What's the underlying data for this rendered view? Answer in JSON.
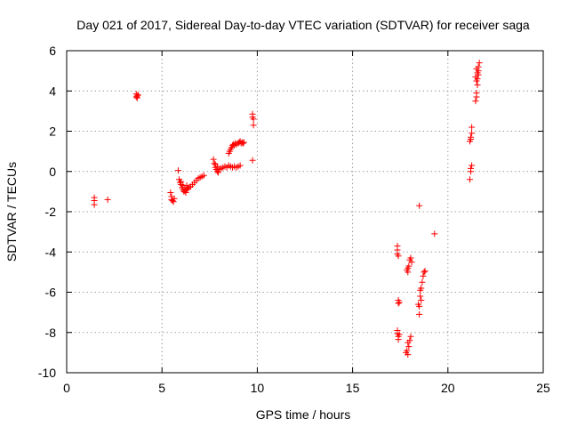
{
  "chart_data": {
    "type": "scatter",
    "title": "Day 021 of 2017, Sidereal Day-to-day VTEC variation (SDTVAR) for receiver saga",
    "xlabel": "GPS time / hours",
    "ylabel": "SDTVAR / TECUs",
    "xlim": [
      0,
      25
    ],
    "ylim": [
      -10,
      6
    ],
    "xticks": [
      0,
      5,
      10,
      15,
      20,
      25
    ],
    "yticks": [
      -10,
      -8,
      -6,
      -4,
      -2,
      0,
      2,
      4,
      6
    ],
    "grid": true,
    "marker": "+",
    "color": "#ff0000",
    "series": [
      {
        "name": "SDTVAR",
        "points": [
          [
            1.45,
            -1.3
          ],
          [
            1.45,
            -1.45
          ],
          [
            1.45,
            -1.65
          ],
          [
            2.15,
            -1.4
          ],
          [
            3.65,
            3.7
          ],
          [
            3.65,
            3.85
          ],
          [
            3.7,
            3.75
          ],
          [
            3.75,
            3.8
          ],
          [
            3.7,
            3.65
          ],
          [
            5.45,
            -1.05
          ],
          [
            5.5,
            -1.25
          ],
          [
            5.55,
            -1.45
          ],
          [
            5.6,
            -1.5
          ],
          [
            5.65,
            -1.35
          ],
          [
            5.5,
            -1.4
          ],
          [
            5.85,
            0.05
          ],
          [
            5.9,
            -0.4
          ],
          [
            5.95,
            -0.55
          ],
          [
            6.0,
            -0.65
          ],
          [
            6.05,
            -0.8
          ],
          [
            6.1,
            -0.9
          ],
          [
            6.15,
            -1.0
          ],
          [
            6.2,
            -0.95
          ],
          [
            6.25,
            -1.05
          ],
          [
            6.3,
            -0.9
          ],
          [
            6.35,
            -0.85
          ],
          [
            6.4,
            -0.8
          ],
          [
            6.5,
            -0.75
          ],
          [
            6.6,
            -0.65
          ],
          [
            6.7,
            -0.55
          ],
          [
            6.8,
            -0.45
          ],
          [
            6.9,
            -0.35
          ],
          [
            7.0,
            -0.3
          ],
          [
            7.1,
            -0.25
          ],
          [
            7.2,
            -0.2
          ],
          [
            6.0,
            -0.5
          ],
          [
            6.1,
            -0.7
          ],
          [
            6.2,
            -0.8
          ],
          [
            6.3,
            -0.7
          ],
          [
            7.7,
            0.6
          ],
          [
            7.75,
            0.4
          ],
          [
            7.8,
            0.2
          ],
          [
            7.85,
            0.1
          ],
          [
            7.9,
            0.0
          ],
          [
            7.95,
            -0.05
          ],
          [
            8.0,
            0.1
          ],
          [
            8.1,
            0.15
          ],
          [
            8.2,
            0.2
          ],
          [
            8.3,
            0.25
          ],
          [
            8.4,
            0.2
          ],
          [
            8.5,
            0.3
          ],
          [
            8.6,
            0.25
          ],
          [
            8.7,
            0.2
          ],
          [
            8.8,
            0.25
          ],
          [
            8.9,
            0.2
          ],
          [
            9.0,
            0.25
          ],
          [
            9.1,
            0.3
          ],
          [
            7.8,
            0.35
          ],
          [
            7.9,
            0.25
          ],
          [
            8.5,
            0.9
          ],
          [
            8.55,
            1.0
          ],
          [
            8.6,
            1.1
          ],
          [
            8.65,
            1.2
          ],
          [
            8.7,
            1.3
          ],
          [
            8.75,
            1.35
          ],
          [
            8.8,
            1.3
          ],
          [
            8.85,
            1.4
          ],
          [
            8.9,
            1.35
          ],
          [
            9.0,
            1.4
          ],
          [
            9.05,
            1.45
          ],
          [
            9.1,
            1.5
          ],
          [
            9.15,
            1.4
          ],
          [
            9.2,
            1.45
          ],
          [
            9.25,
            1.4
          ],
          [
            9.3,
            1.45
          ],
          [
            9.75,
            2.7
          ],
          [
            9.75,
            2.85
          ],
          [
            9.8,
            2.6
          ],
          [
            9.8,
            2.3
          ],
          [
            9.75,
            0.55
          ],
          [
            17.35,
            -3.7
          ],
          [
            17.35,
            -3.9
          ],
          [
            17.35,
            -4.1
          ],
          [
            17.4,
            -4.2
          ],
          [
            17.4,
            -6.4
          ],
          [
            17.4,
            -6.55
          ],
          [
            17.45,
            -6.5
          ],
          [
            17.35,
            -7.9
          ],
          [
            17.35,
            -8.05
          ],
          [
            17.4,
            -8.2
          ],
          [
            17.4,
            -8.35
          ],
          [
            17.45,
            -8.1
          ],
          [
            17.8,
            -9.0
          ],
          [
            17.85,
            -8.9
          ],
          [
            17.9,
            -9.1
          ],
          [
            17.95,
            -8.7
          ],
          [
            18.0,
            -8.4
          ],
          [
            18.05,
            -8.2
          ],
          [
            17.9,
            -8.5
          ],
          [
            17.85,
            -4.9
          ],
          [
            17.9,
            -5.0
          ],
          [
            17.95,
            -4.7
          ],
          [
            18.0,
            -4.4
          ],
          [
            18.05,
            -4.3
          ],
          [
            18.1,
            -4.5
          ],
          [
            17.9,
            -4.8
          ],
          [
            18.45,
            -6.6
          ],
          [
            18.5,
            -6.7
          ],
          [
            18.5,
            -7.1
          ],
          [
            18.55,
            -6.2
          ],
          [
            18.6,
            -5.8
          ],
          [
            18.65,
            -5.5
          ],
          [
            18.7,
            -5.2
          ],
          [
            18.75,
            -5.0
          ],
          [
            18.8,
            -4.95
          ],
          [
            18.55,
            -5.9
          ],
          [
            18.6,
            -6.4
          ],
          [
            18.5,
            -1.7
          ],
          [
            19.3,
            -3.1
          ],
          [
            21.15,
            -0.4
          ],
          [
            21.2,
            0.0
          ],
          [
            21.25,
            0.3
          ],
          [
            21.2,
            0.15
          ],
          [
            21.15,
            1.5
          ],
          [
            21.2,
            1.7
          ],
          [
            21.25,
            1.9
          ],
          [
            21.25,
            2.2
          ],
          [
            21.2,
            1.6
          ],
          [
            21.45,
            3.5
          ],
          [
            21.5,
            3.7
          ],
          [
            21.5,
            3.9
          ],
          [
            21.55,
            4.3
          ],
          [
            21.55,
            4.6
          ],
          [
            21.6,
            4.8
          ],
          [
            21.6,
            5.0
          ],
          [
            21.6,
            5.2
          ],
          [
            21.65,
            5.4
          ],
          [
            21.5,
            5.1
          ],
          [
            21.55,
            4.9
          ],
          [
            21.45,
            4.7
          ],
          [
            21.5,
            4.5
          ]
        ]
      }
    ]
  }
}
